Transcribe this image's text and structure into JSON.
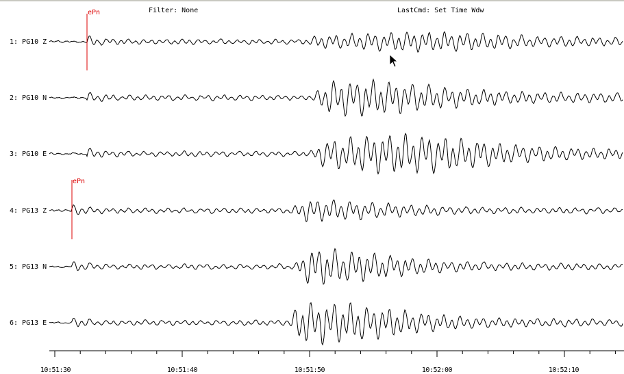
{
  "header": {
    "filter": "Filter: None",
    "last_cmd": "LastCmd: Set Time Wdw"
  },
  "traces": [
    {
      "label": "1: PG10 Z"
    },
    {
      "label": "2: PG10 N"
    },
    {
      "label": "3: PG10 E"
    },
    {
      "label": "4: PG13 Z"
    },
    {
      "label": "5: PG13 N"
    },
    {
      "label": "6: PG13 E"
    }
  ],
  "picks": [
    {
      "trace": 1,
      "phase": "ePn",
      "time": "10:51:32.5"
    },
    {
      "trace": 4,
      "phase": "ePn",
      "time": "10:51:31.3"
    }
  ],
  "time_axis": {
    "tick_labels": [
      "10:51:30",
      "10:51:40",
      "10:51:50",
      "10:52:00",
      "10:52:10"
    ],
    "minor_tick_interval_s": 2
  },
  "colors": {
    "trace": "#000000",
    "pick": "#dd0000"
  }
}
